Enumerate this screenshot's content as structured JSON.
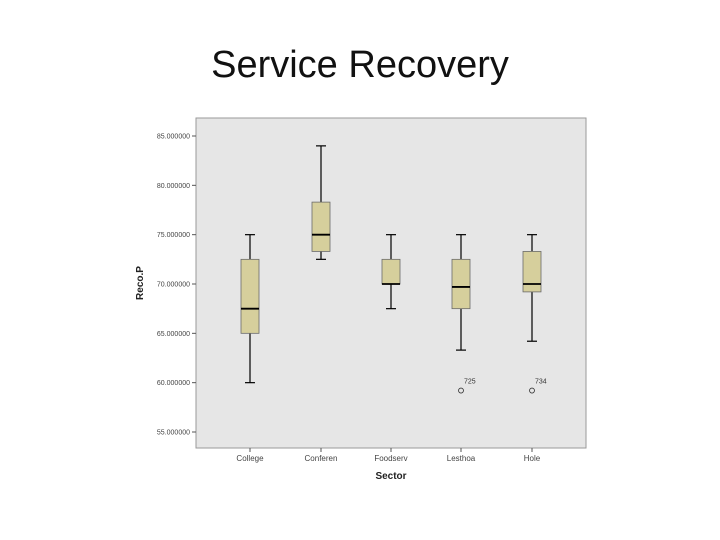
{
  "slide": {
    "title": "Service Recovery"
  },
  "chart_data": {
    "type": "boxplot",
    "xlabel": "Sector",
    "ylabel": "Reco.P",
    "ylim": [
      52,
      87
    ],
    "yticks": [
      55,
      60,
      65,
      70,
      75,
      80,
      85
    ],
    "ytick_labels": [
      "55.000000",
      "60.000000",
      "65.000000",
      "70.000000",
      "75.000000",
      "80.000000",
      "85.000000"
    ],
    "categories": [
      "College",
      "Conferen",
      "Foodserv",
      "Lesthoa",
      "Hole"
    ],
    "boxes": [
      {
        "category": "College",
        "whisker_low": 60.0,
        "q1": 65.0,
        "median": 67.5,
        "q3": 72.5,
        "whisker_high": 75.0,
        "outliers": []
      },
      {
        "category": "Conferen",
        "whisker_low": 72.5,
        "q1": 73.3,
        "median": 75.0,
        "q3": 78.3,
        "whisker_high": 84.0,
        "outliers": []
      },
      {
        "category": "Foodserv",
        "whisker_low": 67.5,
        "q1": 70.0,
        "median": 70.0,
        "q3": 72.5,
        "whisker_high": 75.0,
        "outliers": []
      },
      {
        "category": "Lesthoa",
        "whisker_low": 63.3,
        "q1": 67.5,
        "median": 69.7,
        "q3": 72.5,
        "whisker_high": 75.0,
        "outliers": [
          {
            "value": 59.2,
            "label": "725"
          }
        ]
      },
      {
        "category": "Hole",
        "whisker_low": 64.2,
        "q1": 69.2,
        "median": 70.0,
        "q3": 73.3,
        "whisker_high": 75.0,
        "outliers": [
          {
            "value": 59.2,
            "label": "734"
          }
        ]
      }
    ],
    "colors": {
      "box_fill": "#d6cf9c",
      "plot_bg": "#e6e6e6",
      "axis": "#555555"
    },
    "grid": false,
    "legend": "none"
  }
}
